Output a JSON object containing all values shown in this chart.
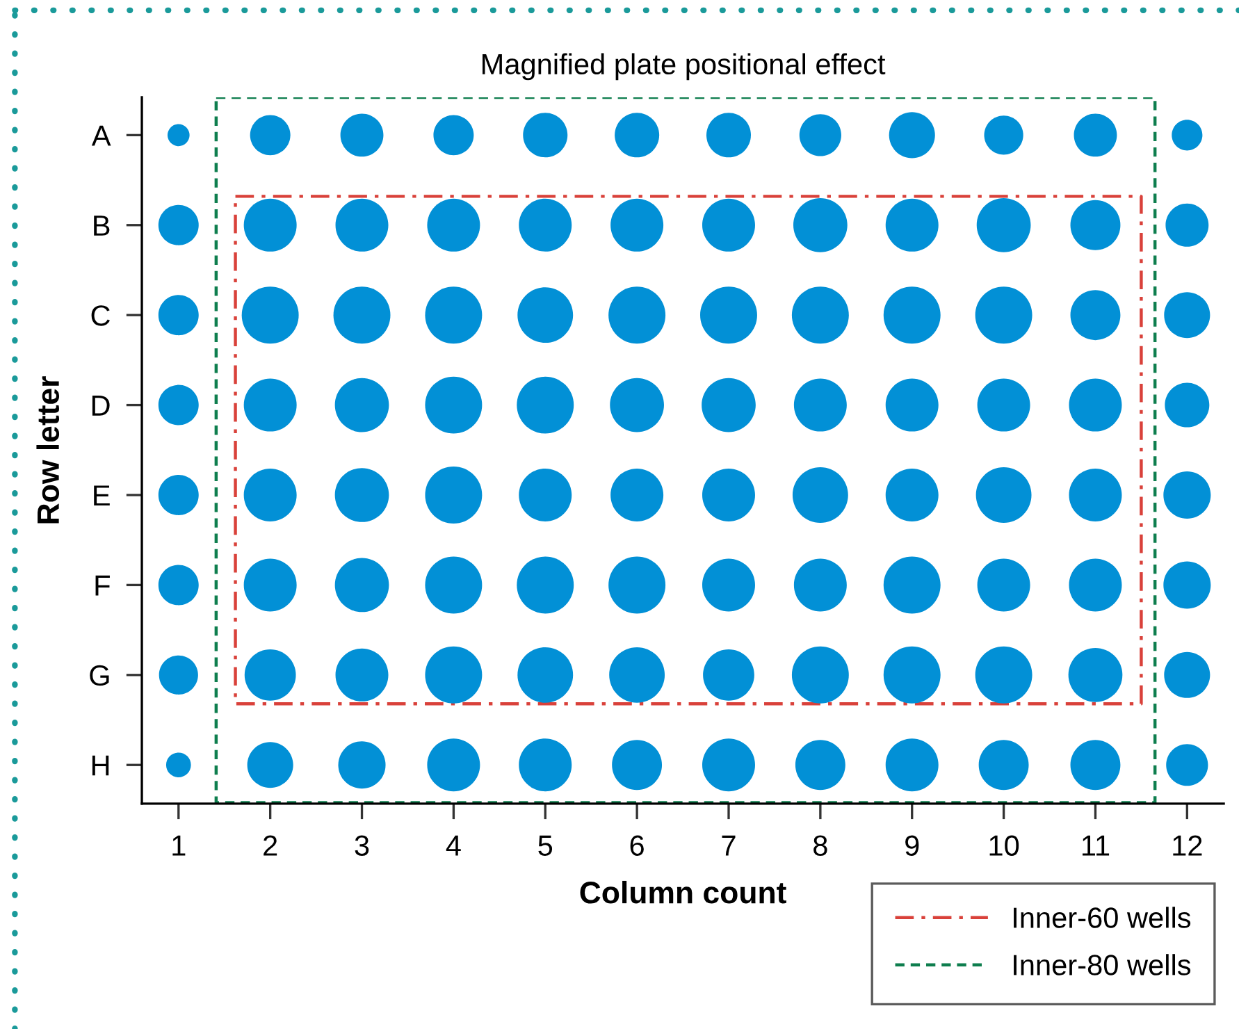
{
  "chart_data": {
    "type": "bubble",
    "orientation": "horizontal",
    "title": "Magnified plate positional effect",
    "xlabel": "Column count",
    "ylabel": "Row letter",
    "categories": [
      "A",
      "B",
      "C",
      "D",
      "E",
      "F",
      "G",
      "H"
    ],
    "xlim": [
      0.6,
      12.4
    ],
    "xticks": [
      1,
      2,
      3,
      4,
      5,
      6,
      7,
      8,
      9,
      10,
      11,
      12
    ],
    "series": [
      {
        "color": "#0290d6",
        "values": [
          1,
          1,
          1,
          1,
          1,
          1,
          1,
          1
        ],
        "sizes": [
          0.15,
          0.5,
          0.5,
          0.5,
          0.5,
          0.5,
          0.47,
          0.19
        ]
      },
      {
        "color": "#0290d6",
        "values": [
          2,
          2,
          2,
          2,
          2,
          2,
          2,
          2
        ],
        "sizes": [
          0.5,
          0.86,
          1,
          0.86,
          0.86,
          0.86,
          0.81,
          0.65
        ]
      },
      {
        "color": "#0290d6",
        "values": [
          3,
          3,
          3,
          3,
          3,
          3,
          3,
          3
        ],
        "sizes": [
          0.57,
          0.86,
          1,
          0.9,
          0.9,
          0.9,
          0.86,
          0.69
        ]
      },
      {
        "color": "#0290d6",
        "values": [
          4,
          4,
          4,
          4,
          4,
          4,
          4,
          4
        ],
        "sizes": [
          0.5,
          0.86,
          1,
          1,
          1,
          1,
          1,
          0.86
        ]
      },
      {
        "color": "#0290d6",
        "values": [
          5,
          5,
          5,
          5,
          5,
          5,
          5,
          5
        ],
        "sizes": [
          0.61,
          0.86,
          0.95,
          1,
          0.86,
          1,
          0.95,
          0.86
        ]
      },
      {
        "color": "#0290d6",
        "values": [
          6,
          6,
          6,
          6,
          6,
          6,
          6,
          6
        ],
        "sizes": [
          0.61,
          0.86,
          1,
          0.9,
          0.86,
          1,
          0.95,
          0.77
        ]
      },
      {
        "color": "#0290d6",
        "values": [
          7,
          7,
          7,
          7,
          7,
          7,
          7,
          7
        ],
        "sizes": [
          0.61,
          0.86,
          1,
          0.9,
          0.86,
          0.86,
          0.81,
          0.86
        ]
      },
      {
        "color": "#0290d6",
        "values": [
          8,
          8,
          8,
          8,
          8,
          8,
          8,
          8
        ],
        "sizes": [
          0.54,
          0.9,
          1,
          0.86,
          0.95,
          0.86,
          1,
          0.77
        ]
      },
      {
        "color": "#0290d6",
        "values": [
          9,
          9,
          9,
          9,
          9,
          9,
          9,
          9
        ],
        "sizes": [
          0.65,
          0.86,
          1,
          0.86,
          0.86,
          1,
          1,
          0.86
        ]
      },
      {
        "color": "#0290d6",
        "values": [
          10,
          10,
          10,
          10,
          10,
          10,
          10,
          10
        ],
        "sizes": [
          0.47,
          0.9,
          1,
          0.86,
          0.95,
          0.86,
          1,
          0.77
        ]
      },
      {
        "color": "#0290d6",
        "values": [
          11,
          11,
          11,
          11,
          11,
          11,
          11,
          11
        ],
        "sizes": [
          0.57,
          0.77,
          0.77,
          0.86,
          0.86,
          0.86,
          0.9,
          0.77
        ]
      },
      {
        "color": "#0290d6",
        "values": [
          12,
          12,
          12,
          12,
          12,
          12,
          12,
          12
        ],
        "sizes": [
          0.29,
          0.57,
          0.65,
          0.61,
          0.69,
          0.69,
          0.65,
          0.54
        ]
      }
    ],
    "annotations": [
      "Inner-60 wells",
      "Inner-80 wells"
    ],
    "grid": false
  }
}
